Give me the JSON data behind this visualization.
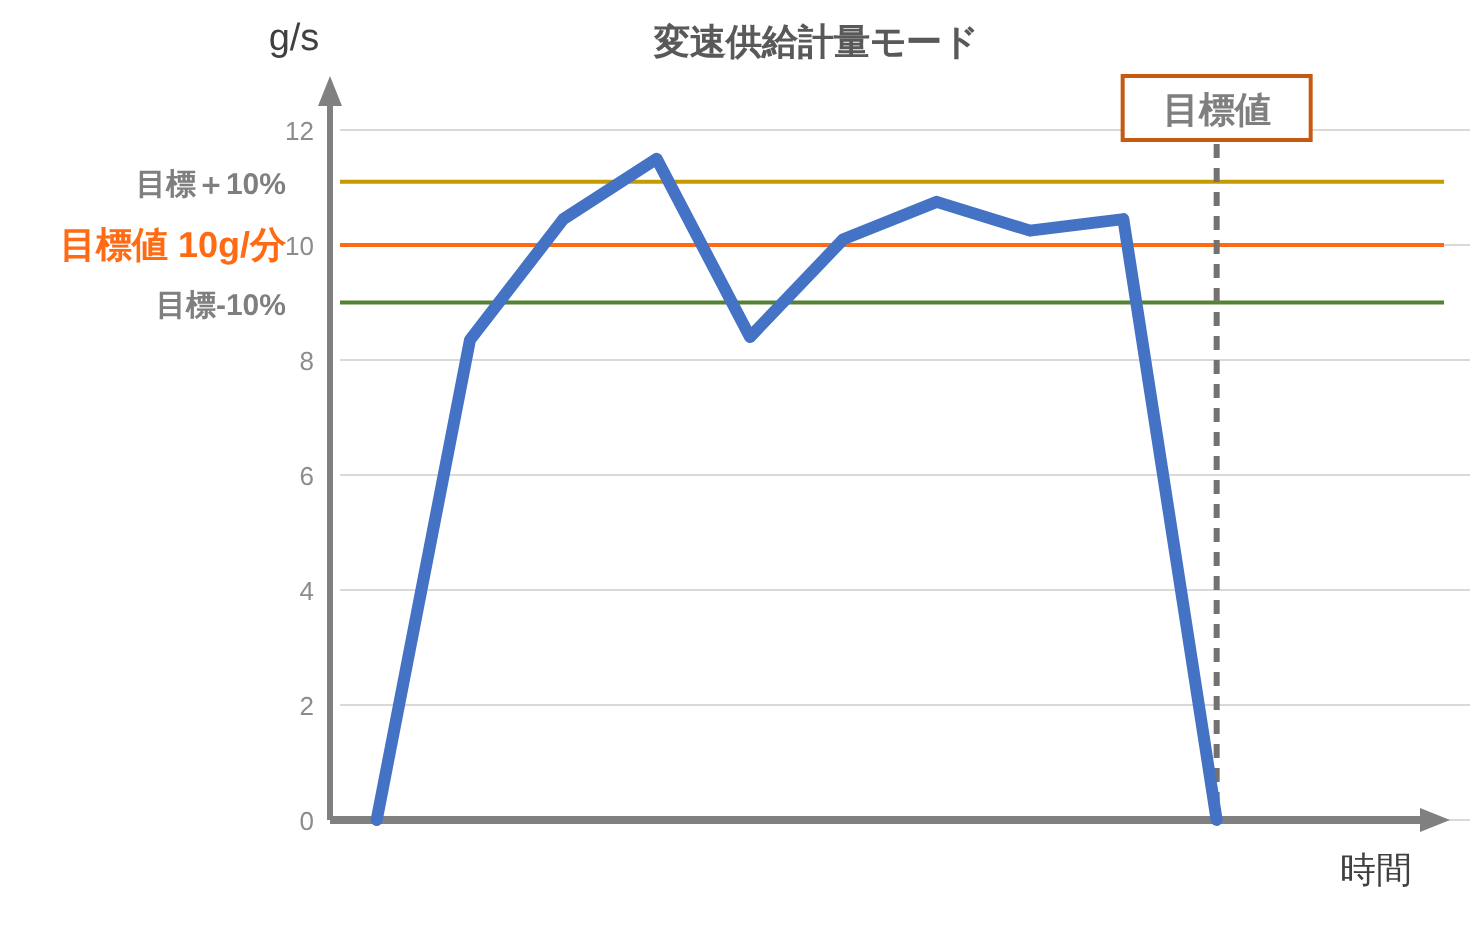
{
  "chart_data": {
    "type": "line",
    "title": "変速供給計量モード",
    "xlabel": "時間",
    "ylabel": "g/s",
    "categories": [
      null,
      null,
      null,
      null,
      null,
      null,
      null,
      null,
      null,
      null,
      null,
      null
    ],
    "series": [
      {
        "color": "#4472c4",
        "values": [
          0,
          8.35,
          10.45,
          11.5,
          8.4,
          10.1,
          10.75,
          10.25,
          10.45,
          0,
          null,
          null
        ]
      }
    ],
    "ylim": [
      0,
      12
    ],
    "yticks": [
      0,
      2,
      4,
      6,
      8,
      10,
      12
    ],
    "grid": "y",
    "marker": "none",
    "line_style": "solid",
    "tick_labels": "y",
    "ref_lines": [
      {
        "axis": "y",
        "value": 11.1,
        "label": "目標＋10%",
        "color": "#c49a00"
      },
      {
        "axis": "y",
        "value": 10,
        "label": "目標値 10g/分",
        "color": "#ff6a13"
      },
      {
        "axis": "y",
        "value": 9,
        "label": "目標-10%",
        "color": "#548235"
      },
      {
        "axis": "x",
        "label": "目標値",
        "color": "#767171",
        "line_style": "dashed"
      }
    ]
  }
}
